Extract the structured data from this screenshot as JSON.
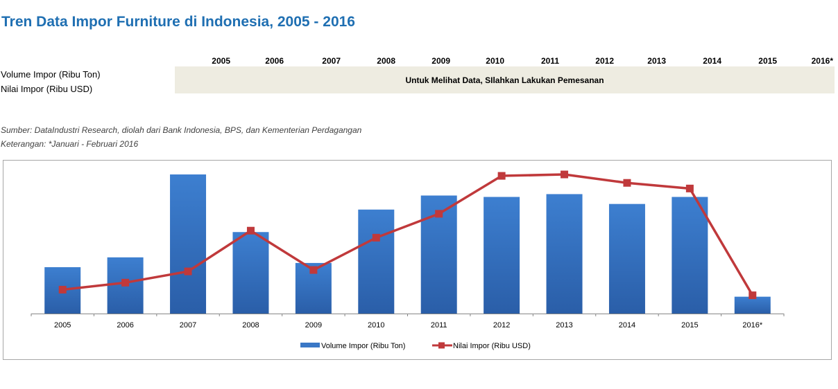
{
  "title": "Tren Data Impor Furniture di Indonesia, 2005 - 2016",
  "table": {
    "years": [
      "2005",
      "2006",
      "2007",
      "2008",
      "2009",
      "2010",
      "2011",
      "2012",
      "2013",
      "2014",
      "2015",
      "2016*"
    ],
    "row_labels": [
      "Volume Impor (Ribu Ton)",
      "Nilai Impor (Ribu USD)"
    ],
    "notice": "Untuk Melihat Data, SIlahkan Lakukan Pemesanan"
  },
  "source": "Sumber: DataIndustri Research, diolah dari Bank Indonesia, BPS, dan Kementerian Perdagangan",
  "note": "Keterangan: *Januari - Februari 2016",
  "colors": {
    "title": "#1f6fb2",
    "bar": "#3a78c6",
    "line": "#c0393b",
    "notice_bg": "#eeece1"
  },
  "chart_data": {
    "type": "bar",
    "categories": [
      "2005",
      "2006",
      "2007",
      "2008",
      "2009",
      "2010",
      "2011",
      "2012",
      "2013",
      "2014",
      "2015",
      "2016*"
    ],
    "series": [
      {
        "name": "Volume Impor (Ribu Ton)",
        "type": "bar",
        "values": [
          33,
          40,
          99,
          58,
          36,
          74,
          84,
          83,
          85,
          78,
          83,
          12
        ]
      },
      {
        "name": "Nilai Impor (Ribu USD)",
        "type": "line",
        "values": [
          17,
          22,
          30,
          59,
          31,
          54,
          71,
          98,
          99,
          93,
          89,
          13
        ]
      }
    ],
    "ylim": [
      0,
      100
    ],
    "grid": false,
    "legend": "bottom",
    "y_axis_labels": "hidden"
  }
}
